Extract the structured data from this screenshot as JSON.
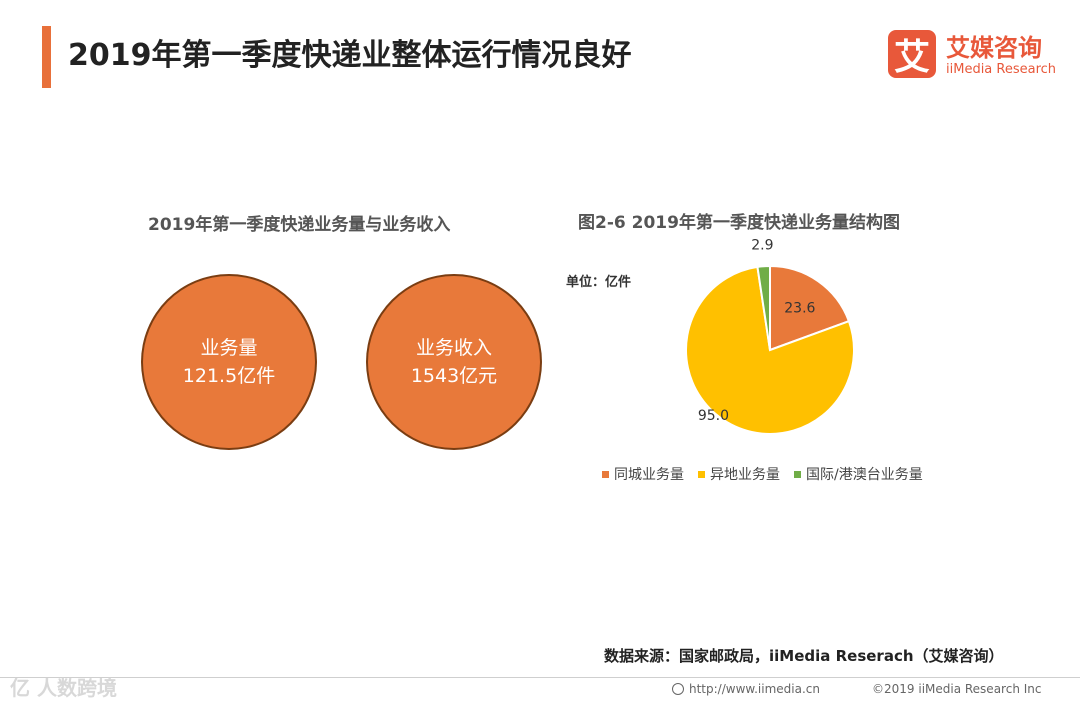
{
  "header": {
    "title": "2019年第一季度快递业整体运行情况良好",
    "logo_mark": "艾",
    "logo_cn": "艾媒咨询",
    "logo_en": "iiMedia Research"
  },
  "left_panel": {
    "title": "2019年第一季度快递业务量与业务收入",
    "circle1": {
      "label": "业务量",
      "value": "121.5亿件"
    },
    "circle2": {
      "label": "业务收入",
      "value": "1543亿元"
    }
  },
  "chart_data": {
    "type": "pie",
    "title": "图2-6 2019年第一季度快递业务量结构图",
    "unit_label": "单位：亿件",
    "slices": [
      {
        "name": "同城业务量",
        "value": 23.6,
        "label": "23.6",
        "color": "#E8793A"
      },
      {
        "name": "异地业务量",
        "value": 95.0,
        "label": "95.0",
        "color": "#FFC000"
      },
      {
        "name": "国际/港澳台业务量",
        "value": 2.9,
        "label": "2.9",
        "color": "#70AD47"
      }
    ],
    "legend_position": "bottom"
  },
  "footer": {
    "source": "数据来源：国家邮政局，iiMedia Reserach（艾媒咨询）",
    "url": "http://www.iimedia.cn",
    "copyright": "©2019  iiMedia Research  Inc",
    "watermark": "亿 人数跨境"
  },
  "icons": {
    "globe": "globe-icon"
  }
}
